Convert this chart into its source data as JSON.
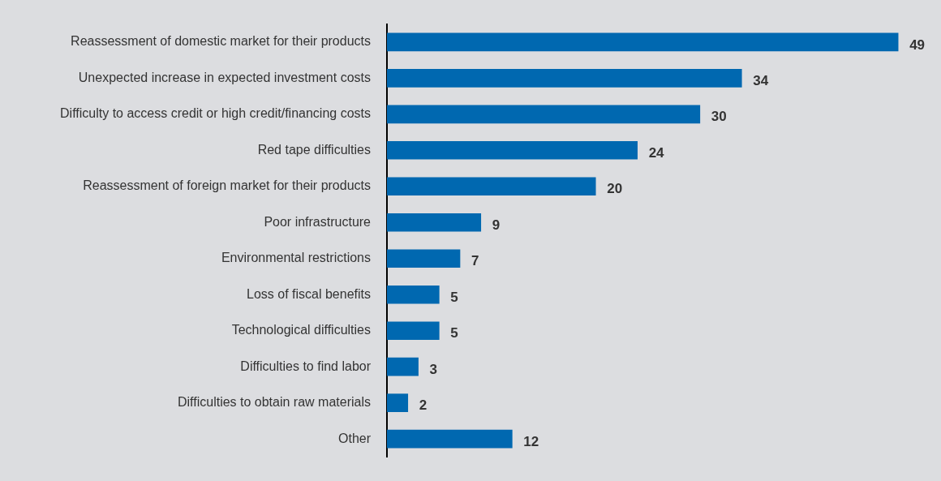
{
  "chart_data": {
    "type": "bar",
    "orientation": "horizontal",
    "categories": [
      "Reassessment of domestic market for their products",
      "Unexpected increase in expected investment costs",
      "Difficulty to access credit or high credit/financing costs",
      "Red tape difficulties",
      "Reassessment of foreign market for their products",
      "Poor infrastructure",
      "Environmental restrictions",
      "Loss of fiscal benefits",
      "Technological difficulties",
      "Difficulties to find labor",
      "Difficulties to obtain raw materials",
      "Other"
    ],
    "values": [
      49,
      34,
      30,
      24,
      20,
      9,
      7,
      5,
      5,
      3,
      2,
      12
    ],
    "color": "#0068b0",
    "data_labels": true,
    "tick_labels": "y",
    "grid": false
  }
}
